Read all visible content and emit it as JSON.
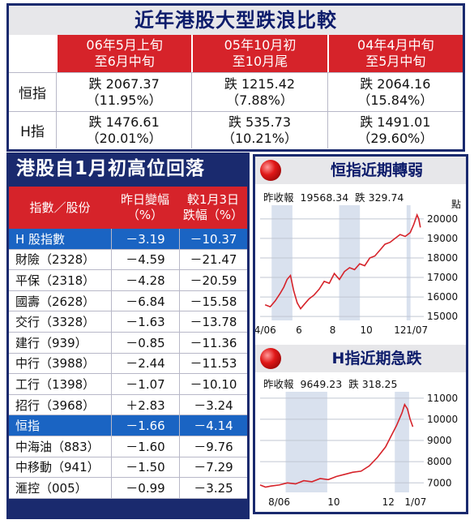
{
  "top": {
    "title": "近年港股大型跌浪比較",
    "columns": [
      {
        "line1": "06年5月上旬",
        "line2": "至6月中旬"
      },
      {
        "line1": "05年10月初",
        "line2": "至10月尾"
      },
      {
        "line1": "04年4月中旬",
        "line2": "至5月中旬"
      }
    ],
    "rows": [
      {
        "label": "恒指",
        "cells": [
          {
            "drop": "跌 2067.37",
            "pct": "（11.95%）"
          },
          {
            "drop": "跌 1215.42",
            "pct": "（7.88%）"
          },
          {
            "drop": "跌 2064.16",
            "pct": "（15.84%）"
          }
        ]
      },
      {
        "label": "H指",
        "cells": [
          {
            "drop": "跌 1476.61",
            "pct": "（20.01%）"
          },
          {
            "drop": "跌 535.73",
            "pct": "（10.21%）"
          },
          {
            "drop": "跌 1491.01",
            "pct": "（29.60%）"
          }
        ]
      }
    ]
  },
  "left": {
    "title": "港股自1月初高位回落",
    "headers": {
      "name": "指數／股份",
      "daily_l1": "昨日變幅",
      "daily_l2": "（%）",
      "ytd_l1": "較1月3日",
      "ytd_l2": "跌幅（%）"
    },
    "rows": [
      {
        "name": "H 股指數",
        "daily": "－3.19",
        "ytd": "－10.37",
        "highlight": true
      },
      {
        "name": "財險（2328）",
        "daily": "－4.59",
        "ytd": "－21.47"
      },
      {
        "name": "平保（2318）",
        "daily": "－4.28",
        "ytd": "－20.59"
      },
      {
        "name": "國壽（2628）",
        "daily": "－6.84",
        "ytd": "－15.58"
      },
      {
        "name": "交行（3328）",
        "daily": "－1.63",
        "ytd": "－13.78"
      },
      {
        "name": "建行（939）",
        "daily": "－0.85",
        "ytd": "－11.36"
      },
      {
        "name": "中行（3988）",
        "daily": "－2.44",
        "ytd": "－11.53"
      },
      {
        "name": "工行（1398）",
        "daily": "－1.07",
        "ytd": "－10.10"
      },
      {
        "name": "招行（3968）",
        "daily": "＋2.83",
        "ytd": "－3.24"
      },
      {
        "name": "恒指",
        "daily": "－1.66",
        "ytd": "－4.14",
        "highlight": true
      },
      {
        "name": "中海油（883）",
        "daily": "－1.60",
        "ytd": "－9.76"
      },
      {
        "name": "中移動（941）",
        "daily": "－1.50",
        "ytd": "－7.29"
      },
      {
        "name": "滙控（005）",
        "daily": "－0.99",
        "ytd": "－3.25"
      }
    ]
  },
  "chart_data": [
    {
      "type": "line",
      "title": "恒指近期轉弱",
      "close_label": "昨收報",
      "close_value": "19568.34",
      "change_label": "跌 329.74",
      "unit": "點",
      "x_ticks": [
        "4/06",
        "6",
        "8",
        "10",
        "12",
        "1/07"
      ],
      "x_tick_pos": [
        0,
        2,
        4,
        6,
        8,
        9
      ],
      "y_ticks": [
        15000,
        16000,
        17000,
        18000,
        19000,
        20000
      ],
      "ylim": [
        14800,
        20700
      ],
      "xlim": [
        -0.3,
        9.4
      ],
      "line_color": "#d6232a",
      "series": [
        {
          "x": [
            0,
            0.3,
            0.6,
            0.9,
            1.1,
            1.3,
            1.5,
            1.7,
            1.9,
            2.1,
            2.3,
            2.6,
            2.9,
            3.2,
            3.5,
            3.8,
            4.1,
            4.4,
            4.7,
            5.0,
            5.3,
            5.6,
            5.9,
            6.2,
            6.5,
            6.8,
            7.1,
            7.4,
            7.7,
            8.0,
            8.3,
            8.6,
            8.8,
            9.0,
            9.1,
            9.2
          ],
          "y": [
            15600,
            15500,
            15800,
            16200,
            16500,
            16900,
            17100,
            16300,
            15700,
            15400,
            15600,
            15900,
            16100,
            16400,
            16800,
            16700,
            17200,
            16900,
            17300,
            17500,
            17400,
            17700,
            17600,
            18000,
            18100,
            18400,
            18700,
            18800,
            19000,
            19200,
            19100,
            19300,
            19700,
            20200,
            20000,
            19560
          ]
        }
      ]
    },
    {
      "type": "line",
      "title": "H指近期急跌",
      "close_label": "昨收報",
      "close_value": "9649.23",
      "change_label": "跌 318.25",
      "unit": "點",
      "x_ticks": [
        "8/06",
        "10",
        "12",
        "1/07"
      ],
      "x_tick_pos": [
        0,
        2,
        4,
        5
      ],
      "y_ticks": [
        7000,
        8000,
        9000,
        10000,
        11000
      ],
      "ylim": [
        6550,
        11300
      ],
      "xlim": [
        -0.7,
        5.3
      ],
      "line_color": "#d6232a",
      "series": [
        {
          "x": [
            -0.7,
            -0.5,
            -0.3,
            0,
            0.3,
            0.6,
            0.9,
            1.2,
            1.5,
            1.8,
            2.1,
            2.4,
            2.7,
            3.0,
            3.3,
            3.6,
            3.9,
            4.1,
            4.3,
            4.5,
            4.6,
            4.7,
            4.8,
            4.9
          ],
          "y": [
            6900,
            6800,
            6850,
            6900,
            7000,
            6950,
            7100,
            7050,
            7200,
            7150,
            7300,
            7400,
            7500,
            7550,
            7800,
            8200,
            8700,
            9200,
            9700,
            10300,
            10700,
            10500,
            10000,
            9650
          ]
        }
      ]
    }
  ]
}
